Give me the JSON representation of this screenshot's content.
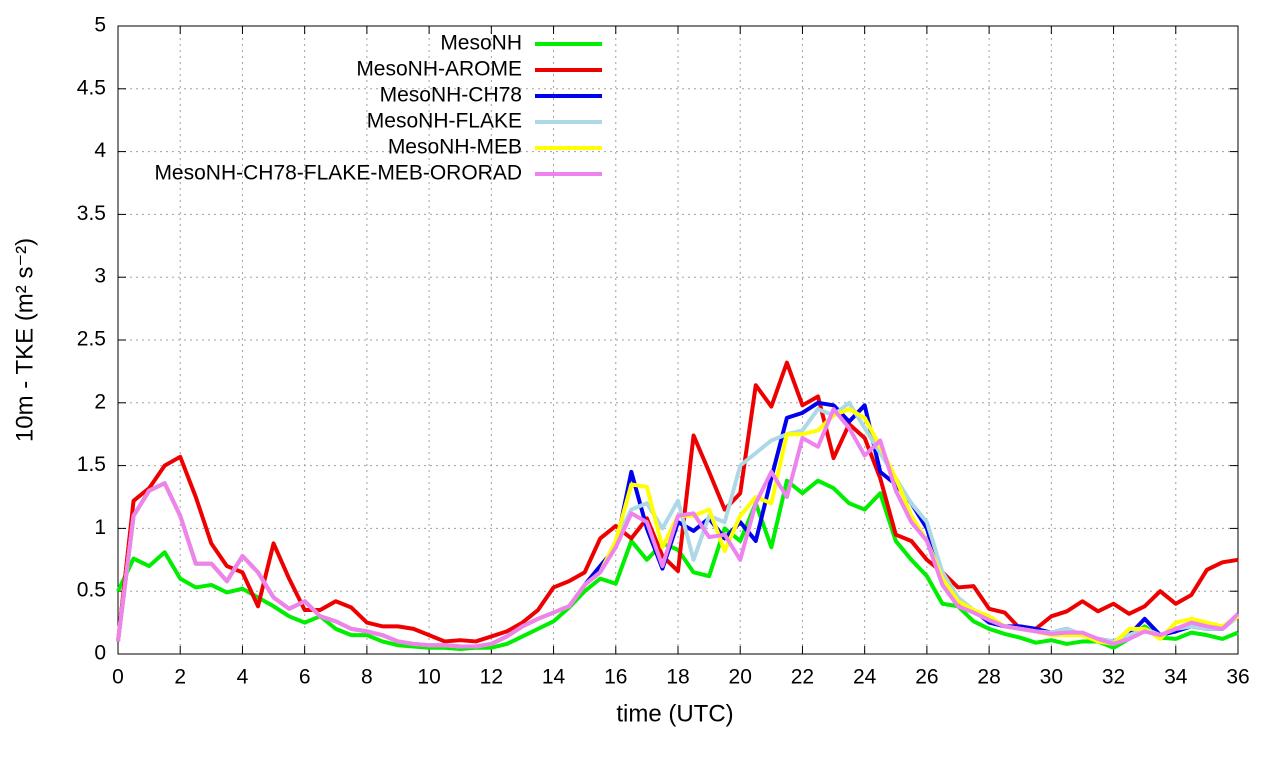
{
  "chart_data": {
    "type": "line",
    "x_label": "time (UTC)",
    "y_label": "10m - TKE (m² s⁻²)",
    "xlim": [
      0,
      36
    ],
    "ylim": [
      0,
      5
    ],
    "xticks": [
      0,
      2,
      4,
      6,
      8,
      10,
      12,
      14,
      16,
      18,
      20,
      22,
      24,
      26,
      28,
      30,
      32,
      34,
      36
    ],
    "yticks": [
      0,
      0.5,
      1,
      1.5,
      2,
      2.5,
      3,
      3.5,
      4,
      4.5,
      5
    ],
    "grid": true,
    "legend": "top",
    "x": [
      0,
      0.5,
      1,
      1.5,
      2,
      2.5,
      3,
      3.5,
      4,
      4.5,
      5,
      5.5,
      6,
      6.5,
      7,
      7.5,
      8,
      8.5,
      9,
      9.5,
      10,
      10.5,
      11,
      11.5,
      12,
      12.5,
      13,
      13.5,
      14,
      14.5,
      15,
      15.5,
      16,
      16.5,
      17,
      17.5,
      18,
      18.5,
      19,
      19.5,
      20,
      20.5,
      21,
      21.5,
      22,
      22.5,
      23,
      23.5,
      24,
      24.5,
      25,
      25.5,
      26,
      26.5,
      27,
      27.5,
      28,
      28.5,
      29,
      29.5,
      30,
      30.5,
      31,
      31.5,
      32,
      32.5,
      33,
      33.5,
      34,
      34.5,
      35,
      35.5,
      36
    ],
    "series": [
      {
        "name": "MesoNH",
        "color": "#00ee00",
        "values": [
          0.5,
          0.76,
          0.7,
          0.81,
          0.6,
          0.53,
          0.55,
          0.49,
          0.52,
          0.45,
          0.38,
          0.3,
          0.25,
          0.3,
          0.2,
          0.15,
          0.15,
          0.1,
          0.07,
          0.06,
          0.05,
          0.05,
          0.04,
          0.05,
          0.05,
          0.08,
          0.14,
          0.2,
          0.26,
          0.37,
          0.5,
          0.6,
          0.56,
          0.9,
          0.75,
          0.88,
          0.83,
          0.65,
          0.62,
          1.0,
          0.9,
          1.2,
          0.85,
          1.38,
          1.28,
          1.38,
          1.32,
          1.2,
          1.15,
          1.28,
          0.9,
          0.75,
          0.62,
          0.4,
          0.38,
          0.26,
          0.2,
          0.16,
          0.13,
          0.09,
          0.11,
          0.08,
          0.1,
          0.1,
          0.05,
          0.12,
          0.22,
          0.13,
          0.12,
          0.17,
          0.15,
          0.12,
          0.17
        ]
      },
      {
        "name": "MesoNH-AROME",
        "color": "#ee0000",
        "values": [
          0.1,
          1.22,
          1.32,
          1.5,
          1.57,
          1.25,
          0.88,
          0.7,
          0.65,
          0.38,
          0.88,
          0.6,
          0.35,
          0.35,
          0.42,
          0.37,
          0.25,
          0.22,
          0.22,
          0.2,
          0.15,
          0.1,
          0.11,
          0.1,
          0.14,
          0.18,
          0.25,
          0.35,
          0.53,
          0.58,
          0.65,
          0.92,
          1.02,
          0.92,
          1.08,
          0.78,
          0.66,
          1.74,
          1.45,
          1.15,
          1.28,
          2.14,
          1.97,
          2.32,
          1.98,
          2.05,
          1.56,
          1.83,
          1.72,
          1.4,
          0.95,
          0.9,
          0.75,
          0.65,
          0.53,
          0.54,
          0.36,
          0.33,
          0.2,
          0.2,
          0.3,
          0.34,
          0.42,
          0.34,
          0.4,
          0.32,
          0.38,
          0.5,
          0.4,
          0.47,
          0.67,
          0.73,
          0.75
        ]
      },
      {
        "name": "MesoNH-CH78",
        "color": "#0000ee",
        "values": [
          0.1,
          1.1,
          1.3,
          1.36,
          1.1,
          0.72,
          0.72,
          0.58,
          0.78,
          0.65,
          0.45,
          0.36,
          0.42,
          0.3,
          0.26,
          0.2,
          0.18,
          0.15,
          0.1,
          0.08,
          0.07,
          0.07,
          0.06,
          0.06,
          0.08,
          0.14,
          0.22,
          0.28,
          0.33,
          0.38,
          0.55,
          0.7,
          0.85,
          1.45,
          1.0,
          0.68,
          1.05,
          0.98,
          1.08,
          0.92,
          1.05,
          0.9,
          1.4,
          1.88,
          1.92,
          2.0,
          1.98,
          1.85,
          1.98,
          1.45,
          1.35,
          1.2,
          1.0,
          0.6,
          0.4,
          0.35,
          0.25,
          0.22,
          0.22,
          0.2,
          0.17,
          0.2,
          0.15,
          0.12,
          0.1,
          0.15,
          0.28,
          0.15,
          0.18,
          0.22,
          0.2,
          0.2,
          0.3
        ]
      },
      {
        "name": "MesoNH-FLAKE",
        "color": "#add8e6",
        "values": [
          0.1,
          1.1,
          1.3,
          1.36,
          1.1,
          0.72,
          0.72,
          0.58,
          0.78,
          0.65,
          0.45,
          0.36,
          0.42,
          0.3,
          0.26,
          0.2,
          0.18,
          0.15,
          0.1,
          0.08,
          0.07,
          0.07,
          0.06,
          0.06,
          0.08,
          0.14,
          0.22,
          0.28,
          0.33,
          0.38,
          0.55,
          0.65,
          0.9,
          1.15,
          1.2,
          1.0,
          1.22,
          0.75,
          1.1,
          1.05,
          1.5,
          1.6,
          1.7,
          1.75,
          1.78,
          1.95,
          1.9,
          2.0,
          1.8,
          1.6,
          1.4,
          1.2,
          1.05,
          0.65,
          0.45,
          0.35,
          0.28,
          0.22,
          0.2,
          0.18,
          0.17,
          0.2,
          0.15,
          0.12,
          0.1,
          0.15,
          0.2,
          0.15,
          0.2,
          0.22,
          0.2,
          0.2,
          0.3
        ]
      },
      {
        "name": "MesoNH-MEB",
        "color": "#ffff00",
        "values": [
          0.1,
          1.1,
          1.3,
          1.36,
          1.1,
          0.72,
          0.72,
          0.58,
          0.78,
          0.65,
          0.45,
          0.36,
          0.42,
          0.3,
          0.26,
          0.2,
          0.18,
          0.15,
          0.1,
          0.08,
          0.07,
          0.07,
          0.06,
          0.06,
          0.08,
          0.14,
          0.22,
          0.28,
          0.33,
          0.38,
          0.55,
          0.65,
          0.9,
          1.35,
          1.33,
          0.85,
          1.1,
          1.1,
          1.15,
          0.82,
          1.1,
          1.25,
          1.2,
          1.75,
          1.75,
          1.78,
          1.9,
          1.95,
          1.88,
          1.65,
          1.4,
          1.1,
          0.9,
          0.6,
          0.42,
          0.35,
          0.3,
          0.22,
          0.2,
          0.18,
          0.15,
          0.15,
          0.15,
          0.1,
          0.08,
          0.2,
          0.2,
          0.12,
          0.25,
          0.28,
          0.25,
          0.22,
          0.3
        ]
      },
      {
        "name": "MesoNH-CH78-FLAKE-MEB-ORORAD",
        "color": "#ee82ee",
        "values": [
          0.1,
          1.1,
          1.3,
          1.36,
          1.1,
          0.72,
          0.72,
          0.58,
          0.78,
          0.65,
          0.45,
          0.36,
          0.42,
          0.3,
          0.26,
          0.2,
          0.18,
          0.15,
          0.1,
          0.08,
          0.07,
          0.07,
          0.06,
          0.06,
          0.08,
          0.14,
          0.22,
          0.28,
          0.33,
          0.38,
          0.55,
          0.65,
          0.85,
          1.12,
          1.05,
          0.7,
          1.1,
          1.12,
          0.93,
          0.95,
          0.75,
          1.2,
          1.45,
          1.25,
          1.72,
          1.65,
          1.95,
          1.8,
          1.58,
          1.7,
          1.3,
          1.05,
          0.9,
          0.55,
          0.38,
          0.33,
          0.27,
          0.22,
          0.2,
          0.18,
          0.16,
          0.17,
          0.17,
          0.12,
          0.08,
          0.12,
          0.18,
          0.15,
          0.2,
          0.25,
          0.22,
          0.2,
          0.32
        ]
      }
    ]
  }
}
